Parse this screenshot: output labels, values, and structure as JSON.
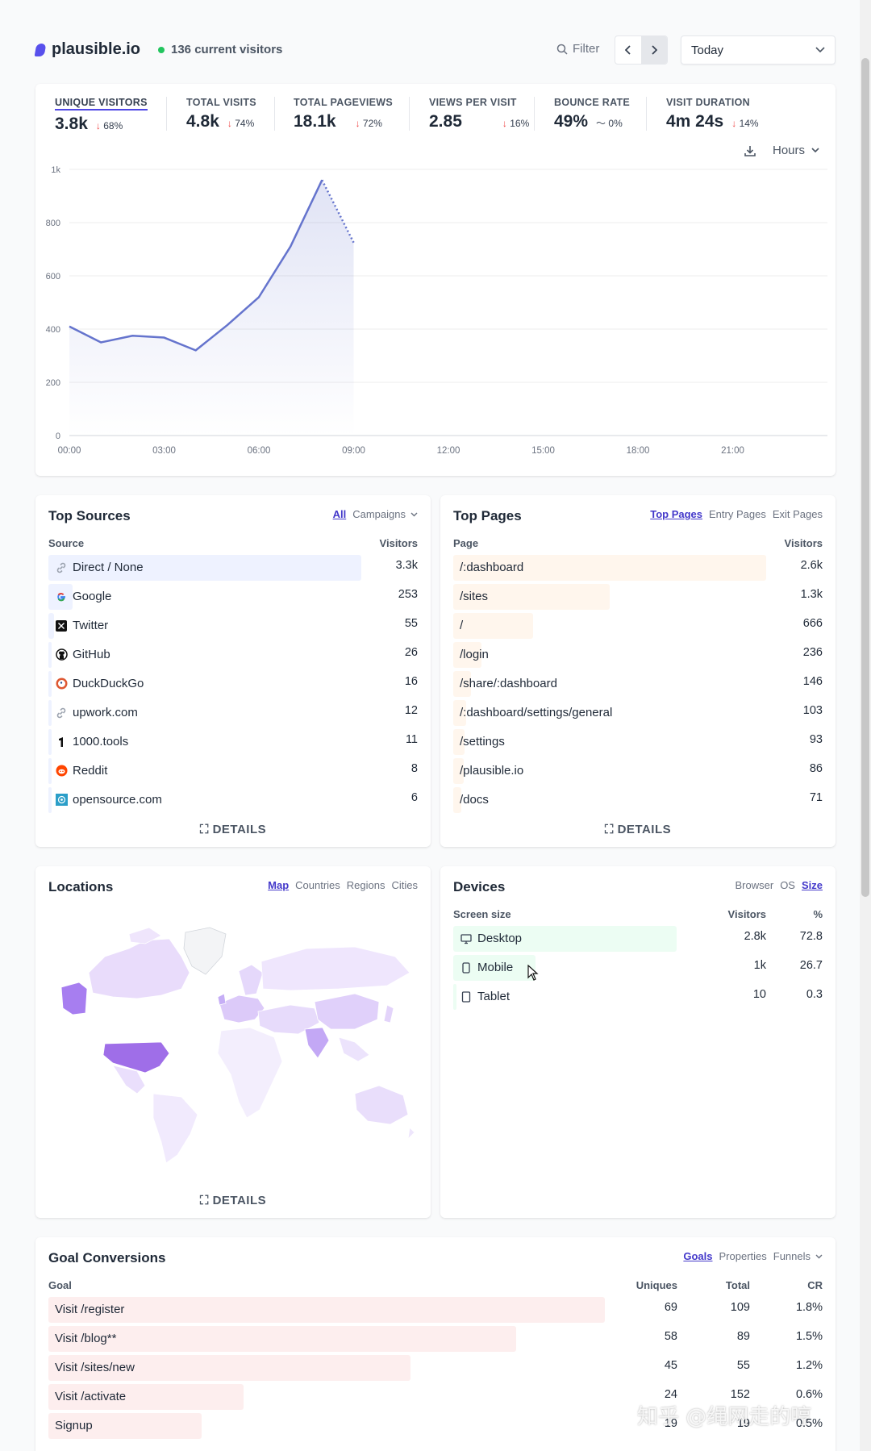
{
  "header": {
    "logo": "plausible.io",
    "current_visitors": "136 current visitors",
    "filter": "Filter",
    "prev": "‹",
    "next": "›",
    "period": "Today"
  },
  "stats": [
    {
      "label": "UNIQUE VISITORS",
      "value": "3.8k",
      "arrow": "↓",
      "change": "68%"
    },
    {
      "label": "TOTAL VISITS",
      "value": "4.8k",
      "arrow": "↓",
      "change": "74%"
    },
    {
      "label": "TOTAL PAGEVIEWS",
      "value": "18.1k",
      "arrow": "↓",
      "change": "72%"
    },
    {
      "label": "VIEWS PER VISIT",
      "value": "2.85",
      "arrow": "↓",
      "change": "16%"
    },
    {
      "label": "BOUNCE RATE",
      "value": "49%",
      "arrow": "〜",
      "change": "0%"
    },
    {
      "label": "VISIT DURATION",
      "value": "4m 24s",
      "arrow": "↓",
      "change": "14%"
    }
  ],
  "chart_tools": {
    "interval": "Hours"
  },
  "chart_data": {
    "type": "line",
    "x": [
      "00:00",
      "01:00",
      "02:00",
      "03:00",
      "04:00",
      "05:00",
      "06:00",
      "07:00",
      "08:00",
      "09:00"
    ],
    "values": [
      410,
      350,
      375,
      368,
      320,
      415,
      520,
      710,
      960,
      725
    ],
    "y_ticks": [
      "0",
      "200",
      "400",
      "600",
      "800",
      "1k"
    ],
    "ylim": [
      0,
      1000
    ],
    "x_ticks": [
      "00:00",
      "03:00",
      "06:00",
      "09:00",
      "12:00",
      "15:00",
      "18:00",
      "21:00"
    ],
    "x_range_hours": [
      0,
      24
    ],
    "dotted_from_index": 8,
    "color": "#6574cd",
    "grid": true
  },
  "sources": {
    "title": "Top Sources",
    "tabs": [
      "All",
      "Campaigns"
    ],
    "col_source": "Source",
    "col_visitors": "Visitors",
    "rows": [
      {
        "label": "Direct / None",
        "value": "3.3k",
        "icon": "link-icon",
        "fraction": 1.0
      },
      {
        "label": "Google",
        "value": "253",
        "icon": "google-icon",
        "fraction": 0.077
      },
      {
        "label": "Twitter",
        "value": "55",
        "icon": "x-icon",
        "fraction": 0.017
      },
      {
        "label": "GitHub",
        "value": "26",
        "icon": "github-icon",
        "fraction": 0.008
      },
      {
        "label": "DuckDuckGo",
        "value": "16",
        "icon": "duckduckgo-icon",
        "fraction": 0.005
      },
      {
        "label": "upwork.com",
        "value": "12",
        "icon": "link-icon",
        "fraction": 0.004
      },
      {
        "label": "1000.tools",
        "value": "11",
        "icon": "tools-icon",
        "fraction": 0.003
      },
      {
        "label": "Reddit",
        "value": "8",
        "icon": "reddit-icon",
        "fraction": 0.002
      },
      {
        "label": "opensource.com",
        "value": "6",
        "icon": "opensource-icon",
        "fraction": 0.002
      }
    ],
    "details": "DETAILS"
  },
  "pages": {
    "title": "Top Pages",
    "tabs": [
      "Top Pages",
      "Entry Pages",
      "Exit Pages"
    ],
    "col_page": "Page",
    "col_visitors": "Visitors",
    "rows": [
      {
        "label": "/:dashboard",
        "value": "2.6k",
        "fraction": 1.0
      },
      {
        "label": "/sites",
        "value": "1.3k",
        "fraction": 0.5
      },
      {
        "label": "/",
        "value": "666",
        "fraction": 0.256
      },
      {
        "label": "/login",
        "value": "236",
        "fraction": 0.091
      },
      {
        "label": "/share/:dashboard",
        "value": "146",
        "fraction": 0.056
      },
      {
        "label": "/:dashboard/settings/general",
        "value": "103",
        "fraction": 0.04
      },
      {
        "label": "/settings",
        "value": "93",
        "fraction": 0.036
      },
      {
        "label": "/plausible.io",
        "value": "86",
        "fraction": 0.033
      },
      {
        "label": "/docs",
        "value": "71",
        "fraction": 0.027
      }
    ],
    "details": "DETAILS"
  },
  "locations": {
    "title": "Locations",
    "tabs": [
      "Map",
      "Countries",
      "Regions",
      "Cities"
    ],
    "details": "DETAILS"
  },
  "devices": {
    "title": "Devices",
    "tabs": [
      "Browser",
      "OS",
      "Size"
    ],
    "col_size": "Screen size",
    "col_visitors": "Visitors",
    "col_pct": "%",
    "rows": [
      {
        "label": "Desktop",
        "value": "2.8k",
        "pct": "72.8",
        "icon": "desktop-icon",
        "fraction": 0.728
      },
      {
        "label": "Mobile",
        "value": "1k",
        "pct": "26.7",
        "icon": "mobile-icon",
        "fraction": 0.267
      },
      {
        "label": "Tablet",
        "value": "10",
        "pct": "0.3",
        "icon": "tablet-icon",
        "fraction": 0.003
      }
    ]
  },
  "goals": {
    "title": "Goal Conversions",
    "tabs": [
      "Goals",
      "Properties",
      "Funnels"
    ],
    "col_goal": "Goal",
    "col_uniques": "Uniques",
    "col_total": "Total",
    "col_cr": "CR",
    "rows": [
      {
        "label": "Visit /register",
        "uniques": "69",
        "total": "109",
        "cr": "1.8%",
        "fraction": 1.0
      },
      {
        "label": "Visit /blog**",
        "uniques": "58",
        "total": "89",
        "cr": "1.5%",
        "fraction": 0.84
      },
      {
        "label": "Visit /sites/new",
        "uniques": "45",
        "total": "55",
        "cr": "1.2%",
        "fraction": 0.65
      },
      {
        "label": "Visit /activate",
        "uniques": "24",
        "total": "152",
        "cr": "0.6%",
        "fraction": 0.35
      },
      {
        "label": "Signup",
        "uniques": "19",
        "total": "19",
        "cr": "0.5%",
        "fraction": 0.275
      }
    ]
  },
  "watermark": "知乎 @绳网走的哼"
}
